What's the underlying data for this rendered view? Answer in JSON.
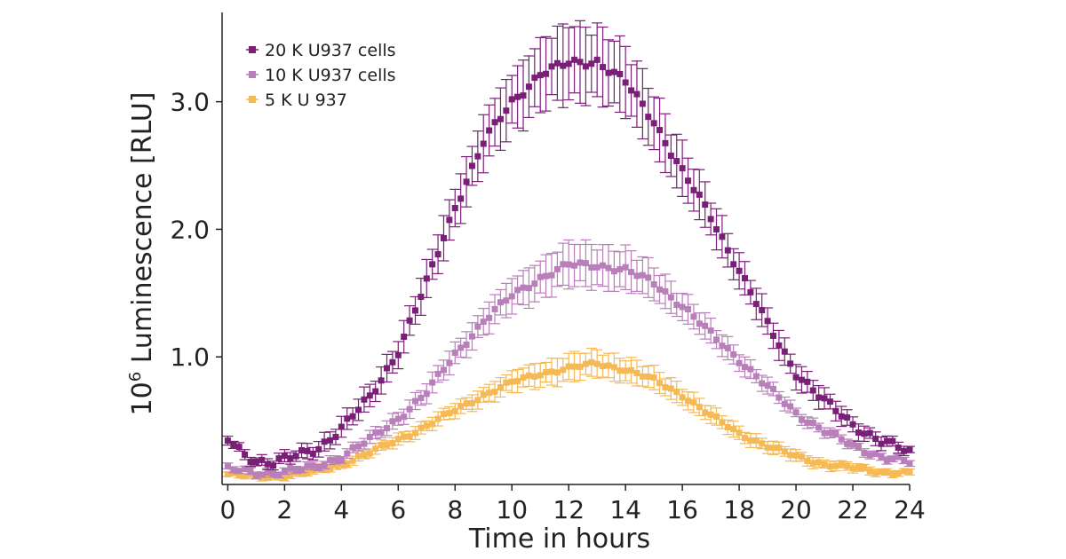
{
  "chart_data": {
    "type": "scatter",
    "title": "",
    "xlabel": "Time in hours",
    "ylabel_base": "10",
    "ylabel_exponent": "6",
    "ylabel_text": " Luminescence [RLU]",
    "xlim": [
      -0.2,
      24
    ],
    "ylim": [
      0.0,
      3.7
    ],
    "x_ticks": [
      0,
      2,
      4,
      6,
      8,
      10,
      12,
      14,
      16,
      18,
      20,
      22,
      24
    ],
    "y_ticks": [
      1.0,
      2.0,
      3.0
    ],
    "y_tick_labels": [
      "1.0",
      "2.0",
      "3.0"
    ],
    "x_step_hours": 0.2,
    "legend_position": "top-left",
    "grid": false,
    "series": [
      {
        "name": "20 K U937 cells",
        "color": "#7a1f78",
        "keypoints": [
          [
            0,
            0.35
          ],
          [
            0.5,
            0.25
          ],
          [
            1.0,
            0.19
          ],
          [
            1.6,
            0.17
          ],
          [
            2.4,
            0.22
          ],
          [
            3.2,
            0.29
          ],
          [
            4.0,
            0.44
          ],
          [
            5.0,
            0.68
          ],
          [
            6.0,
            1.05
          ],
          [
            7.0,
            1.58
          ],
          [
            8.0,
            2.18
          ],
          [
            9.0,
            2.68
          ],
          [
            10.0,
            3.0
          ],
          [
            11.0,
            3.22
          ],
          [
            12.0,
            3.3
          ],
          [
            13.0,
            3.32
          ],
          [
            14.0,
            3.15
          ],
          [
            15.0,
            2.85
          ],
          [
            16.0,
            2.45
          ],
          [
            17.0,
            2.1
          ],
          [
            18.0,
            1.68
          ],
          [
            19.0,
            1.25
          ],
          [
            20.0,
            0.88
          ],
          [
            21.0,
            0.65
          ],
          [
            22.0,
            0.47
          ],
          [
            23.0,
            0.34
          ],
          [
            24.0,
            0.25
          ]
        ],
        "err_keypoints": [
          [
            0,
            0.03
          ],
          [
            2,
            0.04
          ],
          [
            6,
            0.1
          ],
          [
            10,
            0.22
          ],
          [
            12,
            0.28
          ],
          [
            14,
            0.25
          ],
          [
            18,
            0.12
          ],
          [
            24,
            0.03
          ]
        ],
        "jitter": 0.04
      },
      {
        "name": "10 K U937 cells",
        "color": "#b87fba",
        "keypoints": [
          [
            0,
            0.12
          ],
          [
            1.0,
            0.09
          ],
          [
            2.0,
            0.1
          ],
          [
            3.0,
            0.13
          ],
          [
            4.0,
            0.22
          ],
          [
            5.0,
            0.35
          ],
          [
            6.0,
            0.52
          ],
          [
            7.0,
            0.72
          ],
          [
            8.0,
            1.02
          ],
          [
            9.0,
            1.28
          ],
          [
            10.0,
            1.48
          ],
          [
            11.0,
            1.62
          ],
          [
            12.0,
            1.72
          ],
          [
            13.0,
            1.72
          ],
          [
            14.0,
            1.68
          ],
          [
            15.0,
            1.58
          ],
          [
            16.0,
            1.4
          ],
          [
            17.0,
            1.18
          ],
          [
            18.0,
            0.98
          ],
          [
            19.0,
            0.76
          ],
          [
            20.0,
            0.56
          ],
          [
            21.0,
            0.42
          ],
          [
            22.0,
            0.3
          ],
          [
            23.0,
            0.22
          ],
          [
            24.0,
            0.17
          ]
        ],
        "err_keypoints": [
          [
            0,
            0.02
          ],
          [
            4,
            0.03
          ],
          [
            8,
            0.08
          ],
          [
            12,
            0.16
          ],
          [
            14,
            0.15
          ],
          [
            16,
            0.1
          ],
          [
            20,
            0.04
          ],
          [
            24,
            0.02
          ]
        ],
        "jitter": 0.03
      },
      {
        "name": "5 K U 937",
        "color": "#f5b955",
        "keypoints": [
          [
            0,
            0.08
          ],
          [
            1.0,
            0.06
          ],
          [
            2.0,
            0.07
          ],
          [
            3.0,
            0.1
          ],
          [
            4.0,
            0.16
          ],
          [
            5.0,
            0.25
          ],
          [
            6.0,
            0.35
          ],
          [
            7.0,
            0.46
          ],
          [
            8.0,
            0.58
          ],
          [
            9.0,
            0.7
          ],
          [
            10.0,
            0.8
          ],
          [
            11.0,
            0.87
          ],
          [
            12.0,
            0.91
          ],
          [
            13.0,
            0.95
          ],
          [
            14.0,
            0.9
          ],
          [
            15.0,
            0.82
          ],
          [
            16.0,
            0.7
          ],
          [
            17.0,
            0.54
          ],
          [
            18.0,
            0.4
          ],
          [
            19.0,
            0.3
          ],
          [
            20.0,
            0.22
          ],
          [
            21.0,
            0.16
          ],
          [
            22.0,
            0.13
          ],
          [
            23.0,
            0.1
          ],
          [
            24.0,
            0.09
          ]
        ],
        "err_keypoints": [
          [
            0,
            0.02
          ],
          [
            4,
            0.03
          ],
          [
            8,
            0.05
          ],
          [
            12,
            0.1
          ],
          [
            14,
            0.09
          ],
          [
            18,
            0.05
          ],
          [
            24,
            0.02
          ]
        ],
        "jitter": 0.02
      }
    ]
  }
}
